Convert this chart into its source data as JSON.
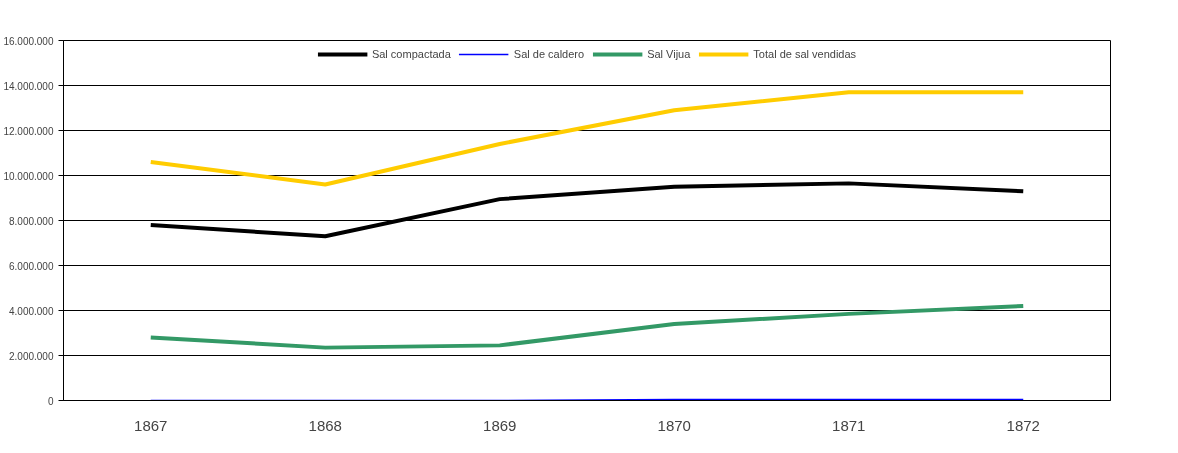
{
  "chart_data": {
    "type": "line",
    "categories": [
      "1867",
      "1868",
      "1869",
      "1870",
      "1871",
      "1872"
    ],
    "series": [
      {
        "name": "Sal compactada",
        "color": "#000000",
        "values": [
          7800000,
          7300000,
          8950000,
          9500000,
          9650000,
          9300000
        ]
      },
      {
        "name": "Sal de caldero",
        "color": "#0000ff",
        "values": [
          0,
          0,
          0,
          50000,
          50000,
          50000
        ]
      },
      {
        "name": "Sal Vijua",
        "color": "#339966",
        "values": [
          2800000,
          2350000,
          2450000,
          3400000,
          3850000,
          4200000
        ]
      },
      {
        "name": "Total de sal vendidas",
        "color": "#ffcc00",
        "values": [
          10600000,
          9600000,
          11400000,
          12900000,
          13700000,
          13700000
        ]
      }
    ],
    "ylim": [
      0,
      16000000
    ],
    "yticks": [
      {
        "value": 0,
        "label": "0"
      },
      {
        "value": 2000000,
        "label": "2.000.000"
      },
      {
        "value": 4000000,
        "label": "4.000.000"
      },
      {
        "value": 6000000,
        "label": "6.000.000"
      },
      {
        "value": 8000000,
        "label": "8.000.000"
      },
      {
        "value": 10000000,
        "label": "10.000.000"
      },
      {
        "value": 12000000,
        "label": "12.000.000"
      },
      {
        "value": 14000000,
        "label": "14.000.000"
      },
      {
        "value": 16000000,
        "label": "16.000.000"
      }
    ],
    "grid": "y",
    "legend": "top",
    "marker": "none",
    "line_style": "solid"
  }
}
